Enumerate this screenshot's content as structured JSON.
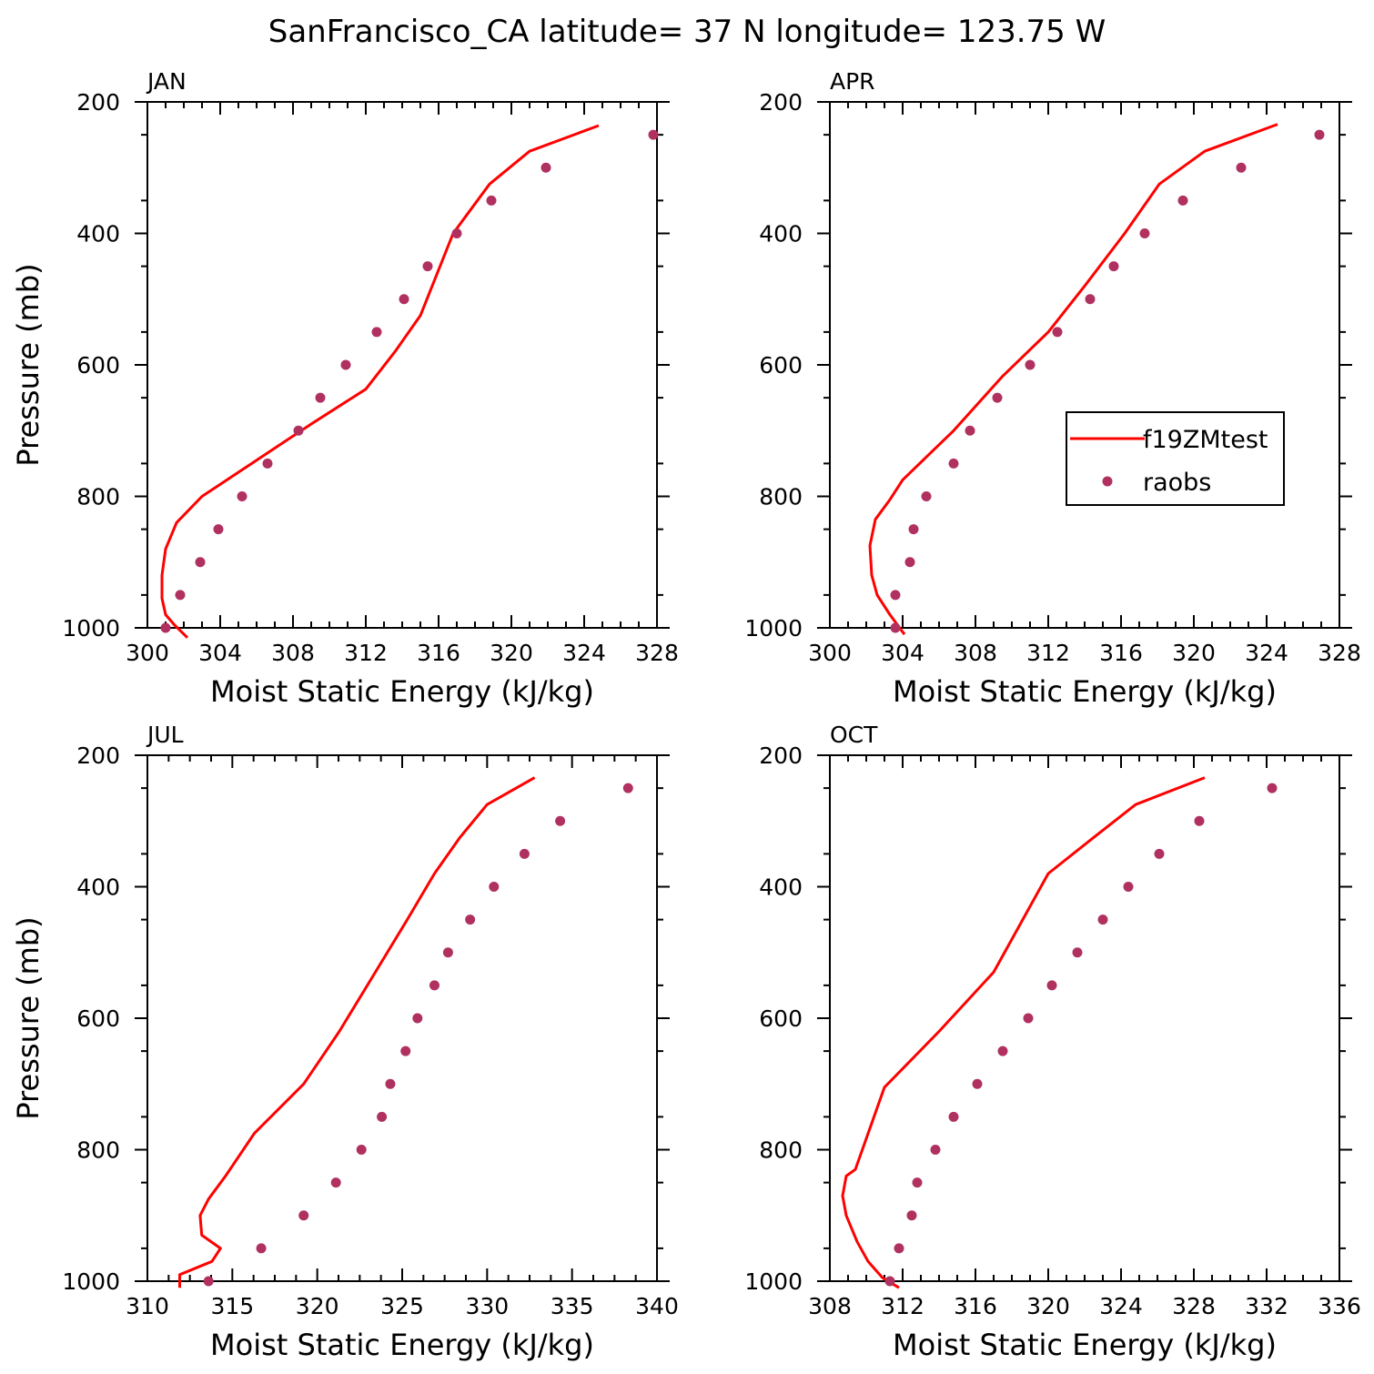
{
  "page": {
    "title": "SanFrancisco_CA  latitude= 37 N longitude= 123.75 W"
  },
  "colors": {
    "model_line": "#ff0000",
    "obs_marker": "#b03060",
    "axis": "#000000"
  },
  "legend": {
    "items": [
      {
        "label": "f19ZMtest",
        "kind": "line"
      },
      {
        "label": "raobs",
        "kind": "marker"
      }
    ]
  },
  "chart_data": [
    {
      "type": "line",
      "title": "JAN",
      "xlabel": "Moist Static Energy (kJ/kg)",
      "ylabel": "Pressure (mb)",
      "xlim": [
        300,
        328
      ],
      "xticks": [
        "300",
        "304",
        "308",
        "312",
        "316",
        "320",
        "324",
        "328"
      ],
      "ylim": [
        200,
        1000
      ],
      "yticks": [
        "200",
        "400",
        "600",
        "800",
        "1000"
      ],
      "grid": false,
      "series": [
        {
          "name": "f19ZMtest",
          "type": "line",
          "x": [
            302.2,
            301.5,
            301.0,
            300.8,
            300.8,
            301.0,
            301.6,
            303.0,
            306.0,
            309.0,
            312.0,
            313.6,
            315.0,
            316.8,
            318.8,
            321.0,
            324.8
          ],
          "y": [
            1015,
            996,
            980,
            955,
            920,
            880,
            840,
            800,
            745,
            690,
            637,
            580,
            525,
            400,
            325,
            275,
            236
          ]
        },
        {
          "name": "raobs",
          "type": "scatter",
          "x": [
            301.0,
            301.8,
            302.9,
            303.9,
            305.2,
            306.6,
            308.3,
            309.5,
            310.9,
            312.6,
            314.1,
            315.4,
            317.0,
            318.9,
            321.9,
            327.8
          ],
          "y": [
            1000,
            950,
            900,
            850,
            800,
            750,
            700,
            650,
            600,
            550,
            500,
            450,
            400,
            350,
            300,
            250
          ]
        }
      ]
    },
    {
      "type": "line",
      "title": "APR",
      "xlabel": "Moist Static Energy (kJ/kg)",
      "ylabel": "",
      "xlim": [
        300,
        328
      ],
      "xticks": [
        "300",
        "304",
        "308",
        "312",
        "316",
        "320",
        "324",
        "328"
      ],
      "ylim": [
        200,
        1000
      ],
      "yticks": [
        "200",
        "400",
        "600",
        "800",
        "1000"
      ],
      "grid": false,
      "series": [
        {
          "name": "f19ZMtest",
          "type": "line",
          "x": [
            304.1,
            303.3,
            302.6,
            302.3,
            302.2,
            302.5,
            303.3,
            304.0,
            306.8,
            309.5,
            312.0,
            314.0,
            316.2,
            318.1,
            320.6,
            324.6
          ],
          "y": [
            1010,
            980,
            950,
            920,
            875,
            835,
            805,
            775,
            700,
            617,
            550,
            480,
            400,
            325,
            275,
            234
          ]
        },
        {
          "name": "raobs",
          "type": "scatter",
          "x": [
            303.6,
            303.6,
            304.4,
            304.6,
            305.3,
            306.8,
            307.7,
            309.2,
            311.0,
            312.5,
            314.3,
            315.6,
            317.3,
            319.4,
            322.6,
            326.9
          ],
          "y": [
            1000,
            950,
            900,
            850,
            800,
            750,
            700,
            650,
            600,
            550,
            500,
            450,
            400,
            350,
            300,
            250
          ]
        }
      ]
    },
    {
      "type": "line",
      "title": "JUL",
      "xlabel": "Moist Static Energy (kJ/kg)",
      "ylabel": "Pressure (mb)",
      "xlim": [
        310,
        340
      ],
      "xticks": [
        "310",
        "315",
        "320",
        "325",
        "330",
        "335",
        "340"
      ],
      "ylim": [
        200,
        1000
      ],
      "yticks": [
        "200",
        "400",
        "600",
        "800",
        "1000"
      ],
      "grid": false,
      "series": [
        {
          "name": "f19ZMtest",
          "type": "line",
          "x": [
            311.9,
            311.9,
            313.8,
            314.3,
            313.2,
            313.1,
            313.6,
            314.6,
            316.3,
            319.2,
            321.3,
            323.3,
            325.3,
            326.9,
            328.4,
            330.0,
            332.8
          ],
          "y": [
            1010,
            990,
            970,
            950,
            930,
            900,
            875,
            840,
            775,
            700,
            620,
            535,
            450,
            380,
            325,
            275,
            234
          ]
        },
        {
          "name": "raobs",
          "type": "scatter",
          "x": [
            313.6,
            316.7,
            319.2,
            321.1,
            322.6,
            323.8,
            324.3,
            325.2,
            325.9,
            326.9,
            327.7,
            329.0,
            330.4,
            332.2,
            334.3,
            338.3
          ],
          "y": [
            1000,
            950,
            900,
            850,
            800,
            750,
            700,
            650,
            600,
            550,
            500,
            450,
            400,
            350,
            300,
            250
          ]
        }
      ]
    },
    {
      "type": "line",
      "title": "OCT",
      "xlabel": "Moist Static Energy (kJ/kg)",
      "ylabel": "",
      "xlim": [
        308,
        336
      ],
      "xticks": [
        "308",
        "312",
        "316",
        "320",
        "324",
        "328",
        "332",
        "336"
      ],
      "ylim": [
        200,
        1000
      ],
      "yticks": [
        "200",
        "400",
        "600",
        "800",
        "1000"
      ],
      "grid": false,
      "series": [
        {
          "name": "f19ZMtest",
          "type": "line",
          "x": [
            311.8,
            310.9,
            310.1,
            309.5,
            308.9,
            308.7,
            308.9,
            309.4,
            311.0,
            314.0,
            317.0,
            320.0,
            322.5,
            324.8,
            328.6
          ],
          "y": [
            1010,
            995,
            970,
            940,
            900,
            870,
            840,
            830,
            705,
            620,
            530,
            380,
            325,
            275,
            234
          ]
        },
        {
          "name": "raobs",
          "type": "scatter",
          "x": [
            311.3,
            311.8,
            312.5,
            312.8,
            313.8,
            314.8,
            316.1,
            317.5,
            318.9,
            320.2,
            321.6,
            323.0,
            324.4,
            326.1,
            328.3,
            332.3
          ],
          "y": [
            1000,
            950,
            900,
            850,
            800,
            750,
            700,
            650,
            600,
            550,
            500,
            450,
            400,
            350,
            300,
            250
          ]
        }
      ]
    }
  ]
}
